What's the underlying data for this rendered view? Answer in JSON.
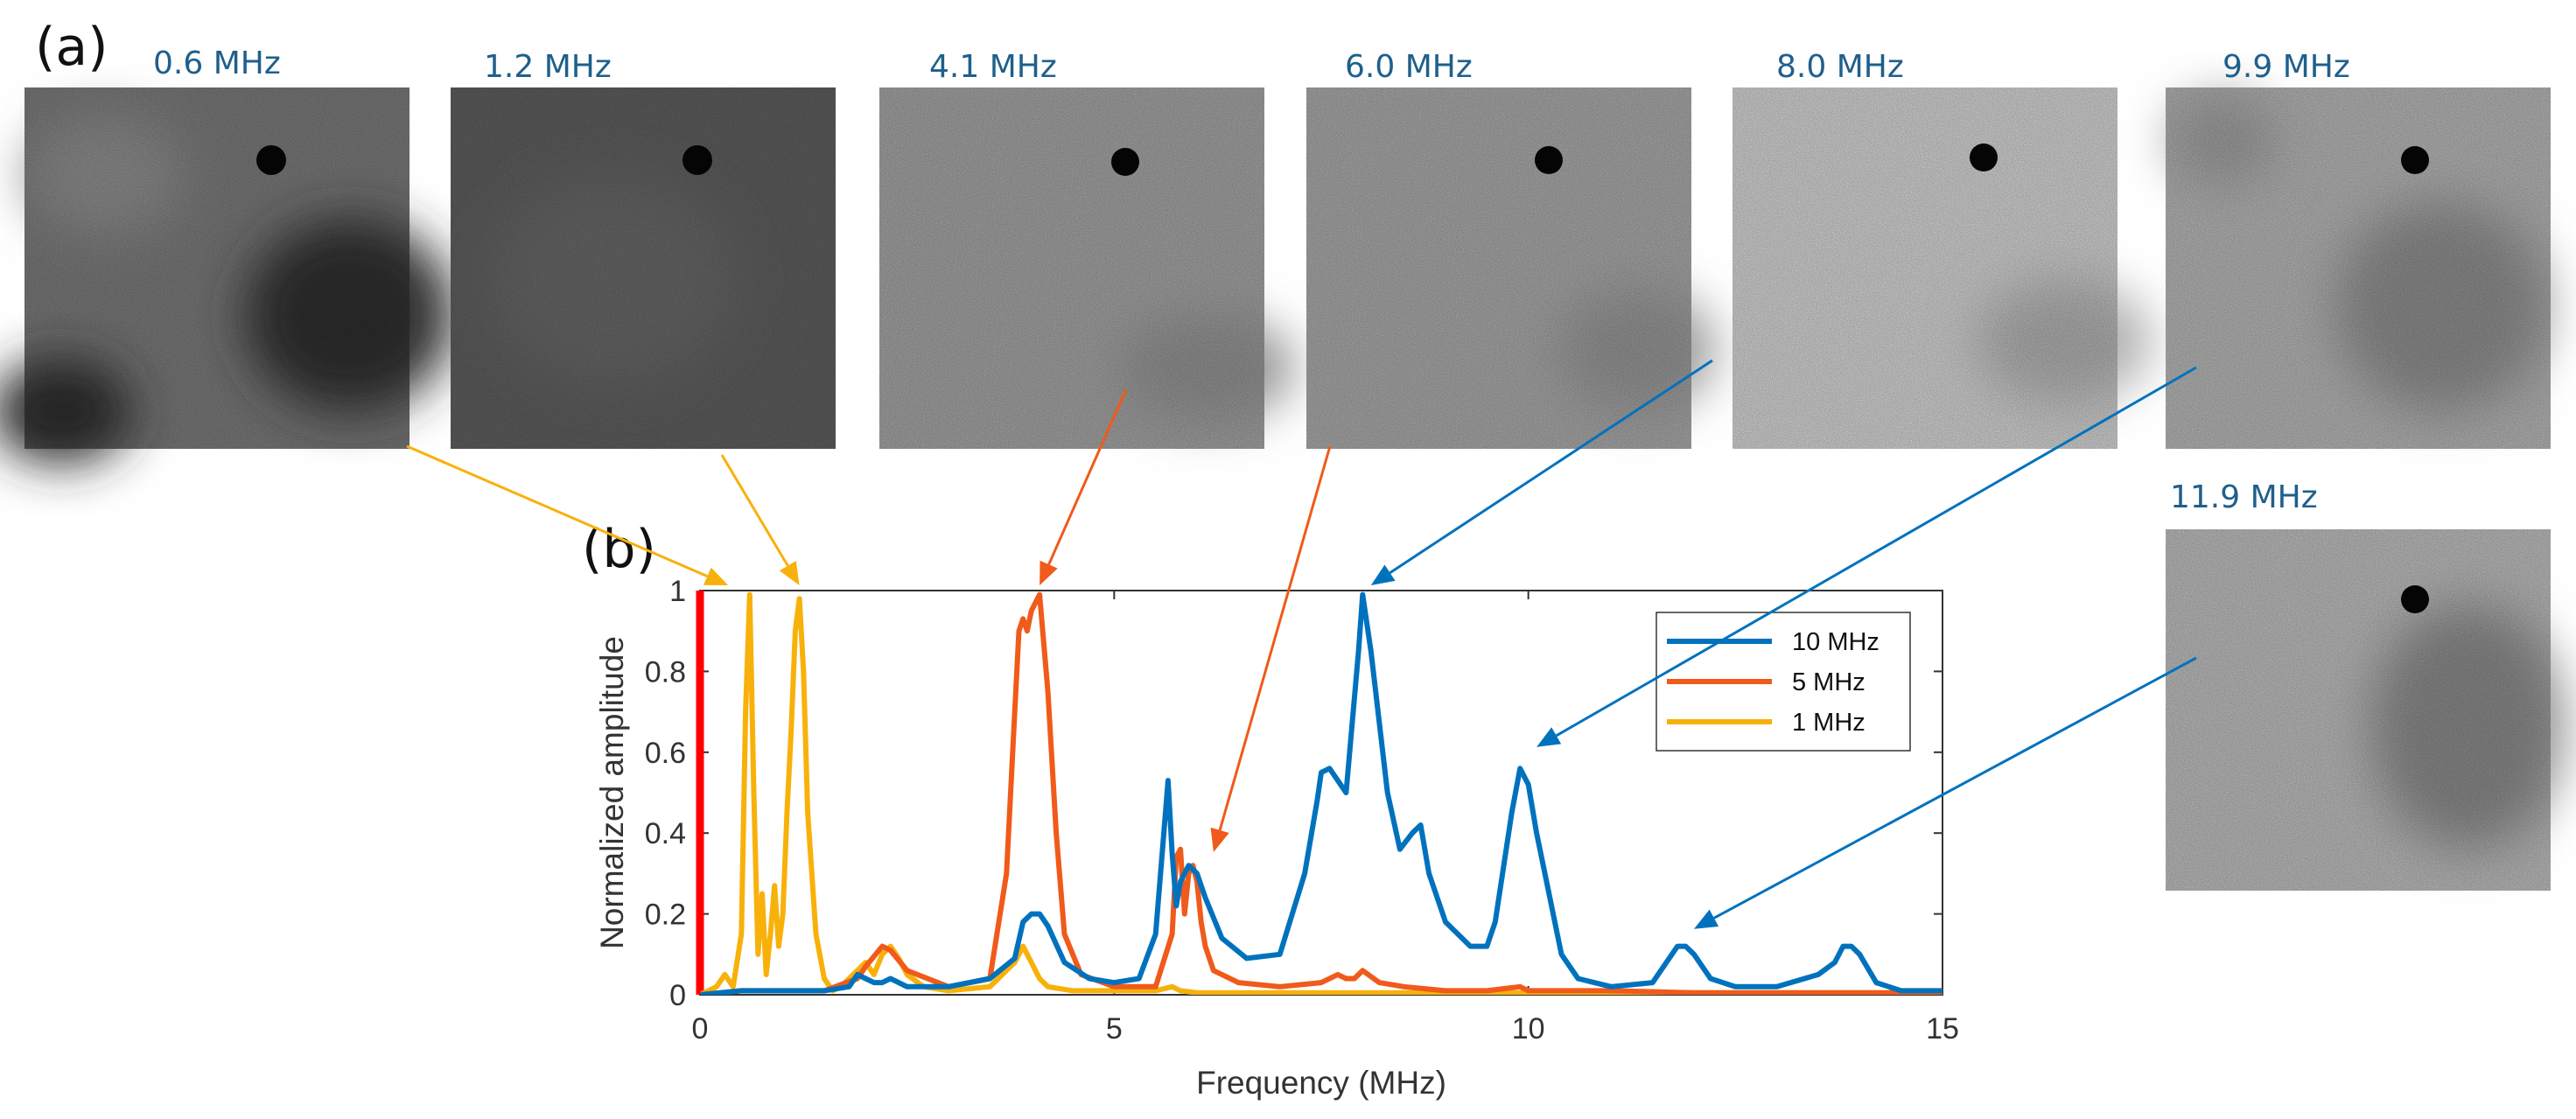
{
  "panel_labels": {
    "a": "(a)",
    "b": "(b)"
  },
  "scans": [
    {
      "label": "0.6 MHz",
      "freq": 0.6,
      "series": "1 MHz"
    },
    {
      "label": "1.2 MHz",
      "freq": 1.2,
      "series": "1 MHz"
    },
    {
      "label": "4.1 MHz",
      "freq": 4.1,
      "series": "5 MHz"
    },
    {
      "label": "6.0 MHz",
      "freq": 6.0,
      "series": "5 MHz"
    },
    {
      "label": "8.0 MHz",
      "freq": 8.0,
      "series": "10 MHz"
    },
    {
      "label": "9.9 MHz",
      "freq": 9.9,
      "series": "10 MHz"
    },
    {
      "label": "11.9 MHz",
      "freq": 11.9,
      "series": "10 MHz"
    }
  ],
  "colors": {
    "label_blue": "#1f5f8b",
    "s10": "#0072bd",
    "s5": "#f05a1a",
    "s1": "#f8b10b",
    "excitation_bar": "#ff0000"
  },
  "chart_data": {
    "type": "line",
    "title": "",
    "xlabel": "Frequency (MHz)",
    "ylabel": "Normalized amplitude",
    "xlim": [
      0,
      15
    ],
    "ylim": [
      0,
      1
    ],
    "xticks": [
      0,
      5,
      10,
      15
    ],
    "yticks": [
      0,
      0.2,
      0.4,
      0.6,
      0.8,
      1
    ],
    "ytick_labels": [
      "0",
      "0.2",
      "0.4",
      "0.6",
      "0.8",
      "1"
    ],
    "legend_position": "top-right",
    "series": [
      {
        "name": "10 MHz",
        "color": "#0072bd",
        "x": [
          0,
          0.5,
          1.0,
          1.5,
          1.8,
          1.9,
          2.0,
          2.1,
          2.2,
          2.3,
          2.5,
          3.0,
          3.5,
          3.8,
          3.9,
          4.0,
          4.1,
          4.2,
          4.4,
          4.7,
          5.0,
          5.3,
          5.5,
          5.6,
          5.65,
          5.7,
          5.75,
          5.8,
          5.9,
          6.0,
          6.1,
          6.3,
          6.6,
          7.0,
          7.3,
          7.45,
          7.5,
          7.6,
          7.8,
          7.95,
          8.0,
          8.1,
          8.3,
          8.45,
          8.6,
          8.7,
          8.8,
          9.0,
          9.3,
          9.5,
          9.6,
          9.8,
          9.9,
          10.0,
          10.1,
          10.2,
          10.4,
          10.6,
          11.0,
          11.5,
          11.7,
          11.8,
          11.9,
          12.0,
          12.2,
          12.5,
          13.0,
          13.5,
          13.7,
          13.8,
          13.9,
          14.0,
          14.2,
          14.5,
          15.0
        ],
        "y": [
          0,
          0.01,
          0.01,
          0.01,
          0.02,
          0.05,
          0.04,
          0.03,
          0.03,
          0.04,
          0.02,
          0.02,
          0.04,
          0.09,
          0.18,
          0.2,
          0.2,
          0.17,
          0.08,
          0.04,
          0.03,
          0.04,
          0.15,
          0.4,
          0.53,
          0.35,
          0.22,
          0.28,
          0.32,
          0.3,
          0.24,
          0.14,
          0.09,
          0.1,
          0.3,
          0.48,
          0.55,
          0.56,
          0.5,
          0.85,
          0.99,
          0.85,
          0.5,
          0.36,
          0.4,
          0.42,
          0.3,
          0.18,
          0.12,
          0.12,
          0.18,
          0.45,
          0.56,
          0.52,
          0.4,
          0.3,
          0.1,
          0.04,
          0.02,
          0.03,
          0.09,
          0.12,
          0.12,
          0.1,
          0.04,
          0.02,
          0.02,
          0.05,
          0.08,
          0.12,
          0.12,
          0.1,
          0.03,
          0.01,
          0.01
        ]
      },
      {
        "name": "5 MHz",
        "color": "#f05a1a",
        "x": [
          0,
          0.5,
          1.0,
          1.5,
          1.9,
          2.0,
          2.2,
          2.3,
          2.5,
          3.0,
          3.5,
          3.7,
          3.8,
          3.85,
          3.9,
          3.95,
          4.0,
          4.05,
          4.1,
          4.2,
          4.3,
          4.4,
          4.6,
          5.0,
          5.5,
          5.7,
          5.75,
          5.8,
          5.85,
          5.9,
          5.95,
          6.0,
          6.05,
          6.1,
          6.2,
          6.5,
          7.0,
          7.5,
          7.7,
          7.8,
          7.9,
          8.0,
          8.2,
          8.5,
          9.0,
          9.5,
          9.9,
          10.0,
          10.2,
          11,
          12,
          13,
          14,
          15
        ],
        "y": [
          0,
          0.01,
          0.01,
          0.01,
          0.04,
          0.07,
          0.12,
          0.11,
          0.06,
          0.02,
          0.04,
          0.3,
          0.7,
          0.9,
          0.93,
          0.9,
          0.95,
          0.97,
          0.99,
          0.75,
          0.4,
          0.15,
          0.05,
          0.02,
          0.02,
          0.15,
          0.34,
          0.36,
          0.2,
          0.3,
          0.32,
          0.28,
          0.18,
          0.12,
          0.06,
          0.03,
          0.02,
          0.03,
          0.05,
          0.04,
          0.04,
          0.06,
          0.03,
          0.02,
          0.01,
          0.01,
          0.02,
          0.01,
          0.01,
          0.01,
          0.005,
          0.005,
          0.005,
          0.005
        ]
      },
      {
        "name": "1 MHz",
        "color": "#f8b10b",
        "x": [
          0,
          0.1,
          0.2,
          0.3,
          0.4,
          0.5,
          0.55,
          0.6,
          0.65,
          0.7,
          0.75,
          0.8,
          0.85,
          0.9,
          0.95,
          1.0,
          1.05,
          1.1,
          1.15,
          1.2,
          1.25,
          1.3,
          1.4,
          1.5,
          1.6,
          1.7,
          1.9,
          2.0,
          2.1,
          2.2,
          2.3,
          2.4,
          2.5,
          2.7,
          3.0,
          3.5,
          3.8,
          3.9,
          4.0,
          4.1,
          4.2,
          4.5,
          5.0,
          5.5,
          5.7,
          5.8,
          6.0,
          6.5,
          7,
          8,
          9,
          10,
          12,
          15
        ],
        "y": [
          0,
          0.01,
          0.02,
          0.05,
          0.02,
          0.15,
          0.7,
          0.99,
          0.5,
          0.1,
          0.25,
          0.05,
          0.15,
          0.27,
          0.12,
          0.2,
          0.45,
          0.65,
          0.9,
          0.98,
          0.8,
          0.45,
          0.15,
          0.04,
          0.01,
          0.02,
          0.06,
          0.08,
          0.05,
          0.1,
          0.12,
          0.09,
          0.05,
          0.02,
          0.01,
          0.02,
          0.08,
          0.12,
          0.08,
          0.04,
          0.02,
          0.01,
          0.01,
          0.01,
          0.02,
          0.01,
          0.005,
          0.005,
          0.005,
          0.005,
          0.005,
          0.005,
          0.005,
          0.005
        ]
      }
    ]
  }
}
